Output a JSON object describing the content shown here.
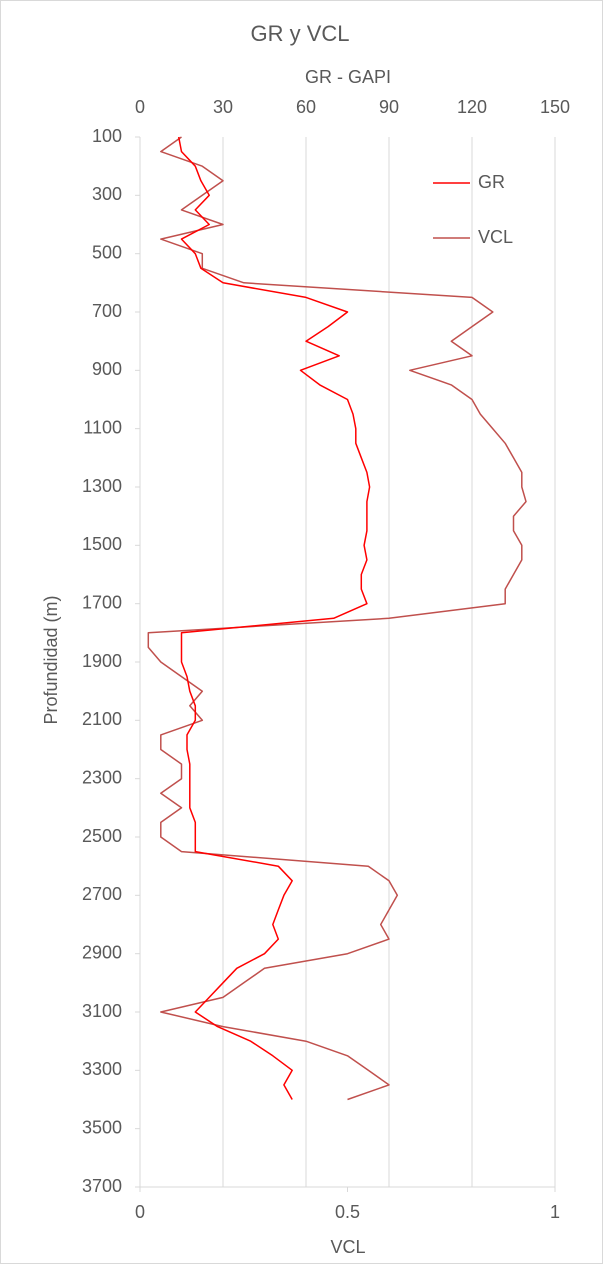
{
  "chart_data": {
    "type": "line",
    "orientation": "vertical",
    "title": "GR y VCL",
    "x2_label": "GR - GAPI",
    "x_label": "VCL",
    "y_label": "Profundidad (m)",
    "y_inverted": true,
    "ylim": [
      100,
      3700
    ],
    "yticks": [
      100,
      300,
      500,
      700,
      900,
      1100,
      1300,
      1500,
      1700,
      1900,
      2100,
      2300,
      2500,
      2700,
      2900,
      3100,
      3300,
      3500,
      3700
    ],
    "xlim": [
      0,
      1
    ],
    "xticks": [
      0,
      0.5,
      1
    ],
    "x2lim": [
      0,
      150
    ],
    "x2ticks": [
      0,
      30,
      60,
      90,
      120,
      150
    ],
    "grid": true,
    "legend": "upper right",
    "depth": [
      100,
      150,
      200,
      250,
      300,
      350,
      400,
      450,
      500,
      550,
      600,
      650,
      700,
      750,
      800,
      850,
      900,
      950,
      1000,
      1050,
      1100,
      1150,
      1200,
      1250,
      1300,
      1350,
      1400,
      1450,
      1500,
      1550,
      1600,
      1650,
      1700,
      1750,
      1800,
      1850,
      1900,
      1950,
      2000,
      2050,
      2100,
      2150,
      2200,
      2250,
      2300,
      2350,
      2400,
      2450,
      2500,
      2550,
      2600,
      2650,
      2700,
      2750,
      2800,
      2850,
      2900,
      2950,
      3000,
      3050,
      3100,
      3150,
      3200,
      3250,
      3300,
      3350,
      3400
    ],
    "series": [
      {
        "name": "GR",
        "color": "#ff0000",
        "axis": "x2",
        "values": [
          14,
          15,
          20,
          22,
          25,
          20,
          25,
          15,
          20,
          22,
          30,
          60,
          75,
          68,
          60,
          72,
          58,
          65,
          75,
          77,
          78,
          78,
          80,
          82,
          83,
          82,
          82,
          82,
          81,
          82,
          80,
          80,
          82,
          70,
          15,
          15,
          15,
          17,
          18,
          20,
          20,
          17,
          17,
          18,
          18,
          18,
          18,
          20,
          20,
          20,
          50,
          55,
          52,
          50,
          48,
          50,
          45,
          35,
          30,
          25,
          20,
          28,
          40,
          48,
          55,
          52,
          55
        ]
      },
      {
        "name": "VCL",
        "color": "#c0504d",
        "values": [
          0.1,
          0.05,
          0.15,
          0.2,
          0.15,
          0.1,
          0.2,
          0.05,
          0.15,
          0.15,
          0.25,
          0.8,
          0.85,
          0.8,
          0.75,
          0.8,
          0.65,
          0.75,
          0.8,
          0.82,
          0.85,
          0.88,
          0.9,
          0.92,
          0.92,
          0.93,
          0.9,
          0.9,
          0.92,
          0.92,
          0.9,
          0.88,
          0.88,
          0.6,
          0.02,
          0.02,
          0.05,
          0.1,
          0.15,
          0.12,
          0.15,
          0.05,
          0.05,
          0.1,
          0.1,
          0.05,
          0.1,
          0.05,
          0.05,
          0.1,
          0.55,
          0.6,
          0.62,
          0.6,
          0.58,
          0.6,
          0.5,
          0.3,
          0.25,
          0.2,
          0.05,
          0.2,
          0.4,
          0.5,
          0.55,
          0.6,
          0.5
        ]
      }
    ]
  }
}
